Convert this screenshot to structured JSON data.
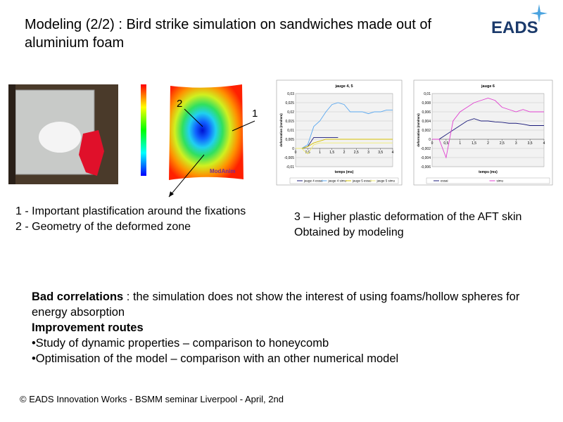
{
  "title": "Modeling (2/2) : Bird strike simulation on sandwiches made out of aluminium foam",
  "logo": "EADS",
  "figure": {
    "label_1": "1",
    "label_2": "2",
    "watermark": "ModAnim"
  },
  "left_notes": [
    "1 - Important plastification around the fixations",
    "2 - Geometry of the deformed zone"
  ],
  "right_notes": [
    "3 – Higher plastic deformation of the AFT skin",
    "Obtained by modeling"
  ],
  "body": {
    "bold": "Bad correlations",
    "text": " :  the simulation does not show the interest of using foams/hollow spheres for energy absorption",
    "heading": "Improvement routes",
    "bullets": [
      "•Study of dynamic properties – comparison to honeycomb",
      "•Optimisation of the model – comparison with an other numerical model"
    ]
  },
  "footer": "© EADS Innovation Works - BSMM seminar Liverpool - April, 2nd",
  "charts": [
    {
      "type": "line",
      "title": "jauge 4, 5",
      "x_label": "temps (ms)",
      "y_label": "deformation (mm/mm)",
      "x": [
        0,
        0.25,
        0.5,
        0.75,
        1,
        1.25,
        1.5,
        1.75,
        2,
        2.25,
        2.5,
        2.75,
        3,
        3.25,
        3.5,
        3.75,
        4
      ],
      "xlim": [
        0,
        4
      ],
      "xticks": [
        0,
        {
          "value": 0.5,
          "label": "0,5"
        },
        1,
        {
          "value": 1.5,
          "label": "1,5"
        },
        2,
        {
          "value": 2.5,
          "label": "2,5"
        },
        3,
        {
          "value": 3.5,
          "label": "3,5"
        },
        4
      ],
      "ylim": [
        -0.01,
        0.03
      ],
      "yticks": [
        {
          "value": -0.01,
          "label": "-0,01"
        },
        {
          "value": -0.005,
          "label": "-0,005"
        },
        0,
        {
          "value": 0.005,
          "label": "0,005"
        },
        {
          "value": 0.01,
          "label": "0,01"
        },
        {
          "value": 0.015,
          "label": "0,015"
        },
        {
          "value": 0.02,
          "label": "0,02"
        },
        {
          "value": 0.025,
          "label": "0,025"
        },
        {
          "value": 0.03,
          "label": "0,03"
        }
      ],
      "series": [
        {
          "name": "jauge 4 essai",
          "color": "#1a1a7a",
          "values": [
            0,
            0,
            0.001,
            0.006,
            0.006,
            0.006,
            0.006,
            0.006,
            null,
            null,
            null,
            null,
            null,
            null,
            null,
            null,
            null
          ]
        },
        {
          "name": "jauge 4 simu",
          "color": "#5aa8f0",
          "values": [
            0,
            0,
            0.002,
            0.012,
            0.015,
            0.02,
            0.024,
            0.025,
            0.024,
            0.02,
            0.02,
            0.02,
            0.019,
            0.02,
            0.02,
            0.021,
            0.021
          ]
        },
        {
          "name": "jauge 5 essai",
          "color": "#d6c000",
          "values": [
            0,
            0,
            0.001,
            0.003,
            0.004,
            0.005,
            0.005,
            0.005,
            0.005,
            0.005,
            0.005,
            0.005,
            0.005,
            0.005,
            0.005,
            0.005,
            0.005
          ]
        },
        {
          "name": "jauge 5 simu",
          "color": "#f0ec70",
          "values": [
            0,
            0,
            -0.003,
            0.002,
            0.003,
            0.003,
            0.003,
            0.003,
            0.003,
            0.003,
            0.003,
            0.003,
            0.003,
            0.003,
            0.003,
            0.003,
            0.003
          ]
        }
      ]
    },
    {
      "type": "line",
      "title": "jauge 6",
      "x_label": "temps (ms)",
      "y_label": "deformation (mm/mm)",
      "x": [
        0,
        0.25,
        0.5,
        0.75,
        1,
        1.25,
        1.5,
        1.75,
        2,
        2.25,
        2.5,
        2.75,
        3,
        3.25,
        3.5,
        3.75,
        4
      ],
      "xlim": [
        0,
        4
      ],
      "xticks": [
        0,
        {
          "value": 0.5,
          "label": "0,5"
        },
        1,
        {
          "value": 1.5,
          "label": "1,5"
        },
        2,
        {
          "value": 2.5,
          "label": "2,5"
        },
        3,
        {
          "value": 3.5,
          "label": "3,5"
        },
        4
      ],
      "ylim": [
        -0.006,
        0.01
      ],
      "yticks": [
        {
          "value": -0.006,
          "label": "-0,006"
        },
        {
          "value": -0.004,
          "label": "-0,004"
        },
        {
          "value": -0.002,
          "label": "-0,002"
        },
        0,
        {
          "value": 0.002,
          "label": "0,002"
        },
        {
          "value": 0.004,
          "label": "0,004"
        },
        {
          "value": 0.006,
          "label": "0,006"
        },
        {
          "value": 0.008,
          "label": "0,008"
        },
        {
          "value": 0.01,
          "label": "0,01"
        }
      ],
      "series": [
        {
          "name": "essai",
          "color": "#1a1a7a",
          "values": [
            0,
            0,
            0.001,
            0.002,
            0.003,
            0.004,
            0.0045,
            0.004,
            0.004,
            0.0038,
            0.0037,
            0.0035,
            0.0035,
            0.0033,
            0.003,
            0.003,
            0.003
          ]
        },
        {
          "name": "simu",
          "color": "#e040d0",
          "values": [
            0,
            0,
            -0.004,
            0.004,
            0.006,
            0.007,
            0.008,
            0.0085,
            0.009,
            0.0085,
            0.007,
            0.0065,
            0.006,
            0.0065,
            0.006,
            0.006,
            0.006
          ]
        }
      ]
    }
  ]
}
